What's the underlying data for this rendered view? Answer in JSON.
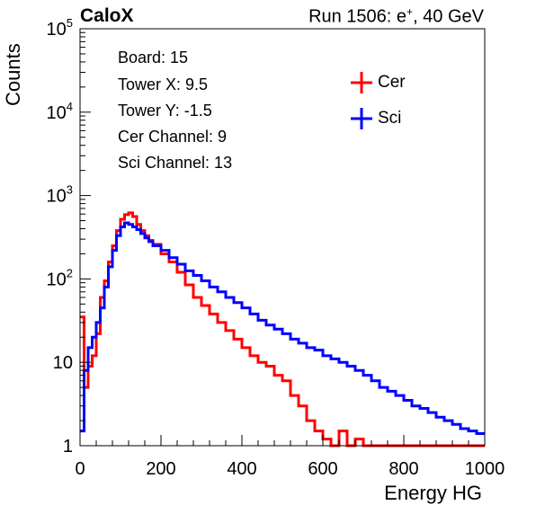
{
  "header": {
    "brand": "CaloX",
    "run_text": "Run 1506: e",
    "run_sup": "+",
    "run_tail": ", 40 GeV"
  },
  "info_box": {
    "lines": [
      "Board: 15",
      "Tower X: 9.5",
      "Tower Y: -1.5",
      "Cer Channel: 9",
      "Sci Channel: 13"
    ]
  },
  "colors": {
    "cer": "#ff0000",
    "sci": "#0000ff"
  },
  "chart_data": {
    "type": "line",
    "title": "",
    "xlabel": "Energy HG",
    "ylabel": "Counts",
    "xlim": [
      0,
      1000
    ],
    "ylim": [
      1,
      100000
    ],
    "yscale": "log",
    "x_ticks": [
      "0",
      "200",
      "400",
      "600",
      "800",
      "1000"
    ],
    "y_ticks": [
      {
        "value": 1,
        "base": "1",
        "exp": ""
      },
      {
        "value": 10,
        "base": "10",
        "exp": ""
      },
      {
        "value": 100,
        "base": "10",
        "exp": "2"
      },
      {
        "value": 1000,
        "base": "10",
        "exp": "3"
      },
      {
        "value": 10000,
        "base": "10",
        "exp": "4"
      },
      {
        "value": 100000,
        "base": "10",
        "exp": "5"
      }
    ],
    "legend_position": "top-right",
    "series": [
      {
        "name": "Cer",
        "color": "#ff0000",
        "x": [
          0,
          10,
          20,
          30,
          40,
          50,
          60,
          70,
          80,
          90,
          100,
          110,
          120,
          130,
          140,
          150,
          160,
          170,
          180,
          200,
          220,
          240,
          260,
          280,
          300,
          320,
          340,
          360,
          380,
          400,
          420,
          440,
          460,
          480,
          500,
          520,
          540,
          560,
          580,
          600,
          620,
          640,
          660,
          680,
          700,
          720,
          740,
          760,
          780,
          800,
          820,
          840,
          860,
          880,
          900,
          920,
          940,
          960,
          980
        ],
        "values": [
          35,
          5,
          9,
          12,
          22,
          60,
          95,
          160,
          250,
          380,
          520,
          590,
          620,
          560,
          450,
          380,
          330,
          290,
          260,
          200,
          160,
          120,
          85,
          60,
          48,
          38,
          30,
          24,
          19,
          15,
          12,
          10,
          9,
          7,
          6,
          4,
          3,
          2,
          1.5,
          1.2,
          1,
          1.5,
          1,
          1.2,
          1,
          1,
          1,
          1,
          1,
          1,
          1,
          1,
          1,
          1,
          1,
          1,
          1,
          1,
          1
        ]
      },
      {
        "name": "Sci",
        "color": "#0000ff",
        "x": [
          0,
          10,
          20,
          30,
          40,
          50,
          60,
          70,
          80,
          90,
          100,
          110,
          120,
          130,
          140,
          150,
          160,
          170,
          180,
          200,
          220,
          240,
          260,
          280,
          300,
          320,
          340,
          360,
          380,
          400,
          420,
          440,
          460,
          480,
          500,
          520,
          540,
          560,
          580,
          600,
          620,
          640,
          660,
          680,
          700,
          720,
          740,
          760,
          780,
          800,
          820,
          840,
          860,
          880,
          900,
          920,
          940,
          960,
          980
        ],
        "values": [
          1.5,
          8,
          15,
          20,
          30,
          45,
          80,
          140,
          220,
          330,
          420,
          470,
          450,
          420,
          390,
          350,
          310,
          280,
          250,
          220,
          180,
          150,
          125,
          110,
          95,
          80,
          70,
          60,
          52,
          45,
          38,
          32,
          28,
          25,
          22,
          19,
          17,
          15,
          14,
          12,
          11,
          10,
          9,
          8,
          7,
          6,
          5,
          4.5,
          4,
          3.5,
          3,
          2.8,
          2.5,
          2.2,
          2,
          1.8,
          1.6,
          1.5,
          1.4
        ]
      }
    ]
  }
}
